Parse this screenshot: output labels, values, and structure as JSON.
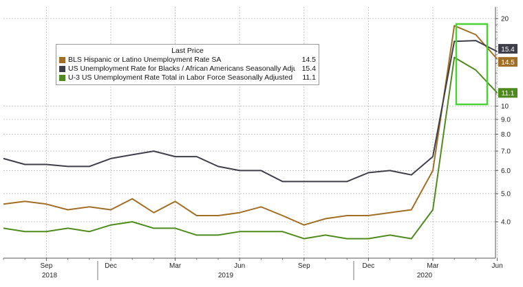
{
  "colors": {
    "hispanic": "#a26d24",
    "black": "#3d3e47",
    "total": "#4e8a1c",
    "highlight": "#4cd137",
    "grid": "#b8b8b8",
    "axis": "#555555"
  },
  "legend": {
    "title": "Last Price",
    "rows": [
      {
        "name": "BLS Hispanic or Latino Unemployment Rate SA",
        "value": "14.5"
      },
      {
        "name": "US Unemployment Rate for Blacks / African Americans Seasonally Adjusted",
        "value": "15.4"
      },
      {
        "name": "U-3 US Unemployment Rate Total in Labor Force Seasonally Adjusted",
        "value": "11.1"
      }
    ]
  },
  "chart_data": {
    "type": "line",
    "title": "",
    "xlabel": "",
    "ylabel": "",
    "y_scale": "log",
    "ylim": [
      3.0,
      21.5
    ],
    "y_ticks": [
      "20",
      "10",
      "9.0",
      "8.0",
      "7.0",
      "6.0",
      "5.0",
      "4.0"
    ],
    "x_ticks": [
      "Sep",
      "Dec",
      "Mar",
      "Jun",
      "Sep",
      "Dec",
      "Mar",
      "Jun"
    ],
    "year_labels": [
      "2018",
      "2019",
      "2020"
    ],
    "x": [
      "2018-07",
      "2018-08",
      "2018-09",
      "2018-10",
      "2018-11",
      "2018-12",
      "2019-01",
      "2019-02",
      "2019-03",
      "2019-04",
      "2019-05",
      "2019-06",
      "2019-07",
      "2019-08",
      "2019-09",
      "2019-10",
      "2019-11",
      "2019-12",
      "2020-01",
      "2020-02",
      "2020-03",
      "2020-04",
      "2020-05",
      "2020-06"
    ],
    "series": [
      {
        "name": "BLS Hispanic or Latino Unemployment Rate SA",
        "values": [
          4.6,
          4.7,
          4.6,
          4.4,
          4.5,
          4.4,
          4.8,
          4.3,
          4.7,
          4.2,
          4.2,
          4.3,
          4.5,
          4.2,
          3.9,
          4.1,
          4.2,
          4.2,
          4.3,
          4.4,
          6.0,
          18.9,
          17.6,
          14.5
        ]
      },
      {
        "name": "US Unemployment Rate for Blacks / African Americans Seasonally Adjusted",
        "values": [
          6.6,
          6.3,
          6.3,
          6.2,
          6.2,
          6.6,
          6.8,
          7.0,
          6.7,
          6.7,
          6.2,
          6.0,
          6.0,
          5.5,
          5.5,
          5.5,
          5.5,
          5.9,
          6.0,
          5.8,
          6.7,
          16.7,
          16.8,
          15.4
        ]
      },
      {
        "name": "U-3 US Unemployment Rate Total in Labor Force Seasonally Adjusted",
        "values": [
          3.8,
          3.7,
          3.7,
          3.8,
          3.7,
          3.9,
          4.0,
          3.8,
          3.8,
          3.6,
          3.6,
          3.7,
          3.7,
          3.7,
          3.5,
          3.6,
          3.5,
          3.5,
          3.6,
          3.5,
          4.4,
          14.7,
          13.3,
          11.1
        ]
      }
    ],
    "last_value_labels": [
      "14.5",
      "15.4",
      "11.1"
    ],
    "grid": true,
    "legend_position": "top-left"
  }
}
